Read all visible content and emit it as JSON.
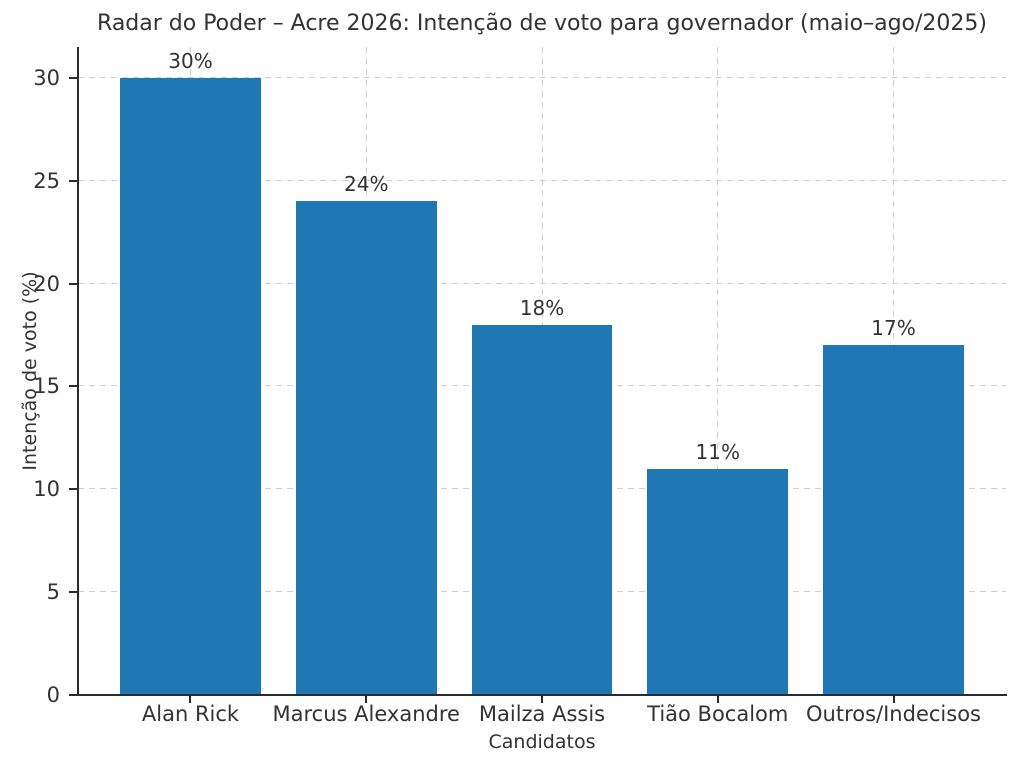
{
  "chart_data": {
    "type": "bar",
    "title": "Radar do Poder – Acre 2026: Intenção de voto para governador (maio–ago/2025)",
    "xlabel": "Candidatos",
    "ylabel": "Intenção de voto (%)",
    "categories": [
      "Alan Rick",
      "Marcus Alexandre",
      "Mailza Assis",
      "Tião Bocalom",
      "Outros/Indecisos"
    ],
    "values": [
      30,
      24,
      18,
      11,
      17
    ],
    "bar_labels": [
      "30%",
      "24%",
      "18%",
      "11%",
      "17%"
    ],
    "yticks": [
      0,
      5,
      10,
      15,
      20,
      25,
      30
    ],
    "ylim": [
      0,
      31.5
    ],
    "grid": {
      "horizontal": true,
      "vertical": true,
      "style": "dashed"
    },
    "legend": "none",
    "colors": {
      "bar": "#1f77b4",
      "grid": "#cfcfcf",
      "spine": "#2b2b2b",
      "text": "#333333"
    }
  }
}
